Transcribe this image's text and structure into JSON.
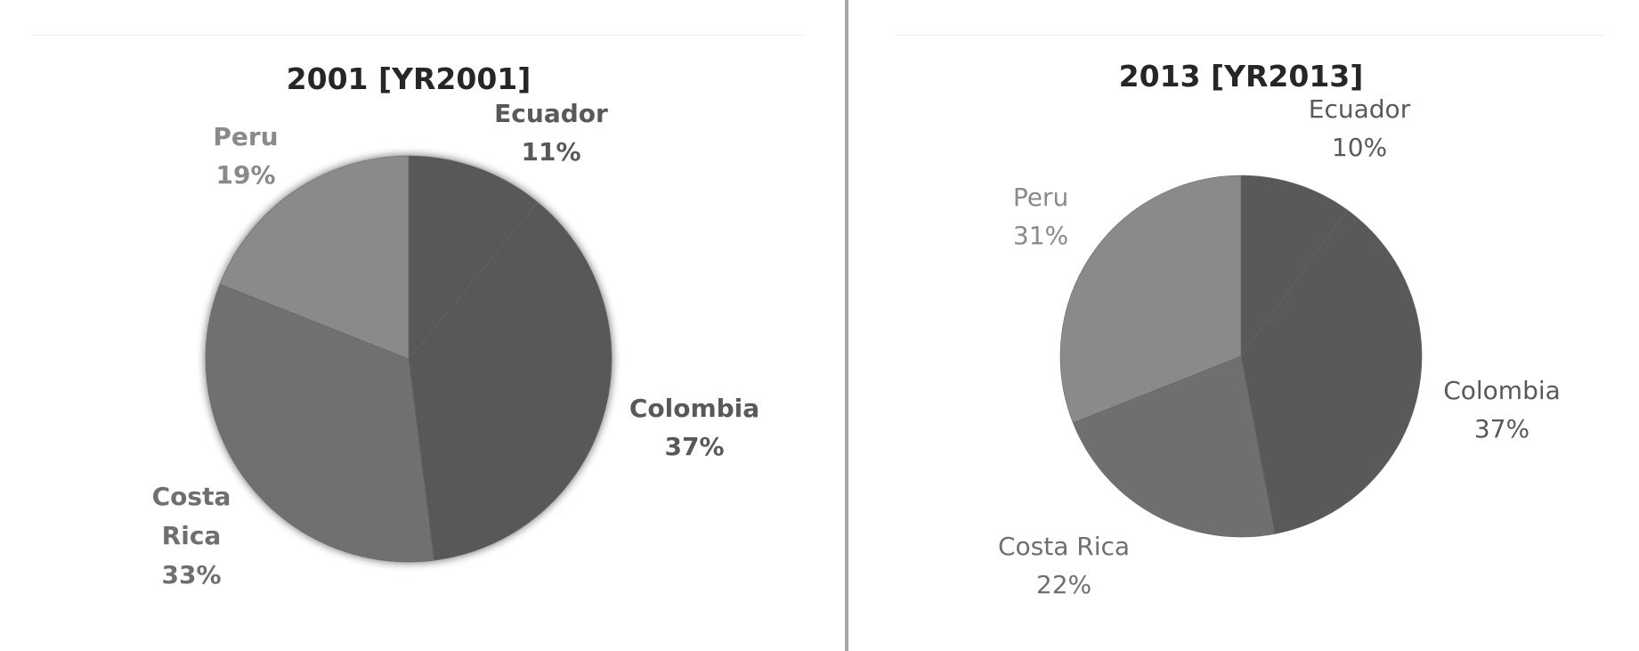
{
  "chart_data": [
    {
      "type": "pie",
      "title": "2001 [YR2001]",
      "categories": [
        "Ecuador",
        "Colombia",
        "Costa Rica",
        "Peru"
      ],
      "values": [
        11,
        37,
        33,
        19
      ],
      "labels": [
        [
          "Ecuador",
          "11%"
        ],
        [
          "Colombia",
          "37%"
        ],
        [
          "Costa",
          "Rica",
          "33%"
        ],
        [
          "Peru",
          "19%"
        ]
      ],
      "colors": [
        "#595959",
        "#595959",
        "#6f6f6f",
        "#8a8a8a"
      ],
      "label_colors": [
        "#595959",
        "#595959",
        "#6f6f6f",
        "#8a8a8a"
      ],
      "start_angle": "12 o'clock, clockwise"
    },
    {
      "type": "pie",
      "title": "2013 [YR2013]",
      "categories": [
        "Ecuador",
        "Colombia",
        "Costa Rica",
        "Peru"
      ],
      "values": [
        10,
        37,
        22,
        31
      ],
      "labels": [
        [
          "Ecuador",
          "10%"
        ],
        [
          "Colombia",
          "37%"
        ],
        [
          "Costa Rica",
          "22%"
        ],
        [
          "Peru",
          "31%"
        ]
      ],
      "colors": [
        "#595959",
        "#595959",
        "#6f6f6f",
        "#8a8a8a"
      ],
      "label_colors": [
        "#595959",
        "#595959",
        "#6f6f6f",
        "#8a8a8a"
      ],
      "start_angle": "12 o'clock, clockwise"
    }
  ]
}
